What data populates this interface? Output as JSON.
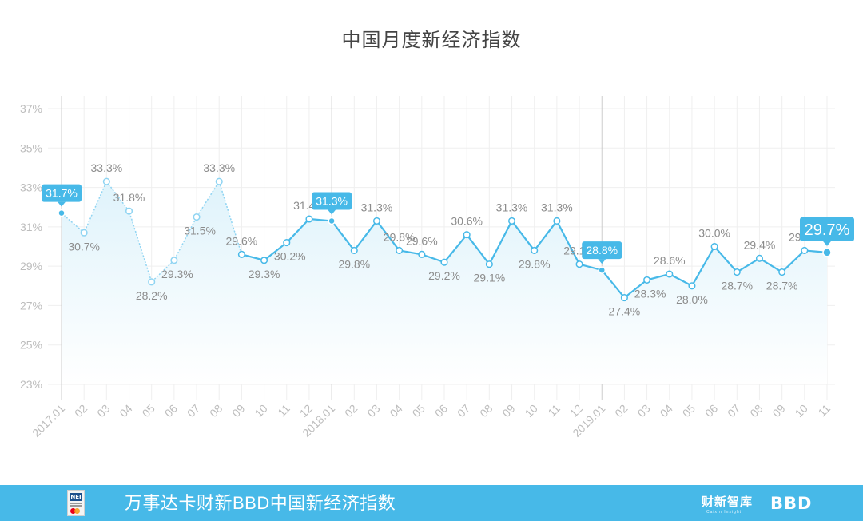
{
  "chart_data": {
    "type": "line",
    "title": "中国月度新经济指数",
    "ylim": [
      23,
      37
    ],
    "yticks": [
      23,
      25,
      27,
      29,
      31,
      33,
      35,
      37
    ],
    "ytick_suffix": "%",
    "grid": true,
    "x": [
      "2017.01",
      "02",
      "03",
      "04",
      "05",
      "06",
      "07",
      "08",
      "09",
      "10",
      "11",
      "12",
      "2018.01",
      "02",
      "03",
      "04",
      "05",
      "06",
      "07",
      "08",
      "09",
      "10",
      "11",
      "12",
      "2019.01",
      "02",
      "03",
      "04",
      "05",
      "06",
      "07",
      "08",
      "09",
      "10",
      "11"
    ],
    "series": [
      {
        "values": [
          31.7,
          30.7,
          33.3,
          31.8,
          28.2,
          29.3,
          31.5,
          33.3,
          29.6,
          29.3,
          30.2,
          31.4,
          31.3,
          29.8,
          31.3,
          29.8,
          29.6,
          29.2,
          30.6,
          29.1,
          31.3,
          29.8,
          31.3,
          29.1,
          28.8,
          27.4,
          28.3,
          28.6,
          28.0,
          30.0,
          28.7,
          29.4,
          28.7,
          29.8,
          29.7
        ]
      }
    ],
    "highlights": [
      {
        "index": 0,
        "label": "31.7%"
      },
      {
        "index": 12,
        "label": "31.3%"
      },
      {
        "index": 24,
        "label": "28.8%"
      },
      {
        "index": 34,
        "label": "29.7%"
      }
    ],
    "dashed_segment_before_index": 8,
    "colors": {
      "line": "#47b9e8",
      "line_dashed": "#8fd4f2",
      "area_top": "#dff3fb",
      "grid": "#efefef",
      "year_divider": "#cccccc"
    }
  },
  "footer": {
    "title": "万事达卡财新BBD中国新经济指数",
    "badge": "NEI",
    "brand": "财新智库",
    "brand_sub": "Caixin Insight",
    "bbd_logo": "BBD"
  }
}
